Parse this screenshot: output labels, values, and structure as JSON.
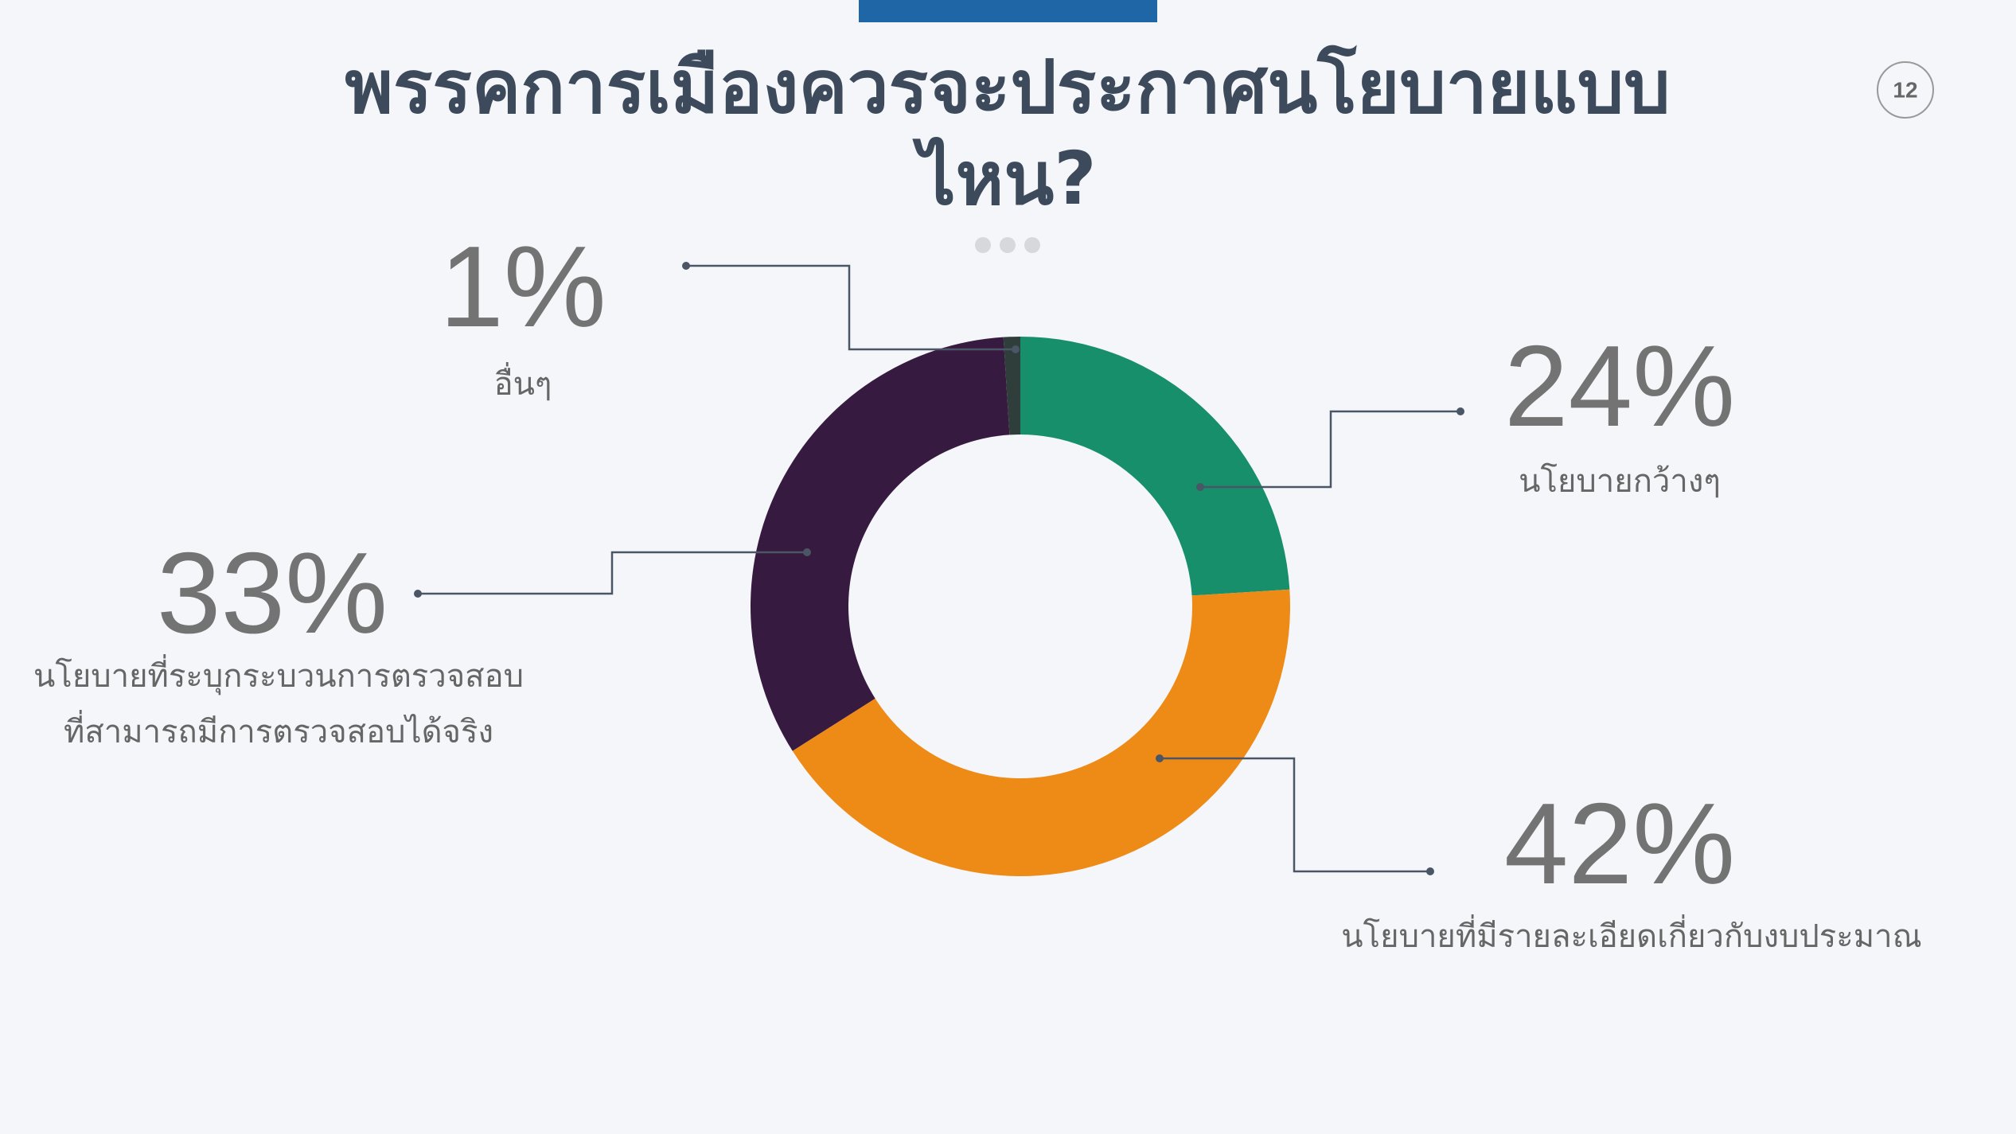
{
  "page_number": 12,
  "chart_data": {
    "type": "pie",
    "donut": true,
    "title": "พรรคการเมืองควรจะประกาศนโยบายแบบไหน?",
    "categories": [
      "นโยบายกว้างๆ",
      "นโยบายที่มีรายละเอียดเกี่ยวกับงบประมาณ",
      "นโยบายที่ระบุกระบวนการตรวจสอบที่สามารถมีการตรวจสอบได้จริง",
      "อื่นๆ"
    ],
    "values": [
      24,
      42,
      33,
      1
    ],
    "value_labels": [
      "24%",
      "42%",
      "33%",
      "1%"
    ],
    "colors": [
      "#178f6b",
      "#ee8b16",
      "#371a3f",
      "#2f3e3a"
    ]
  }
}
